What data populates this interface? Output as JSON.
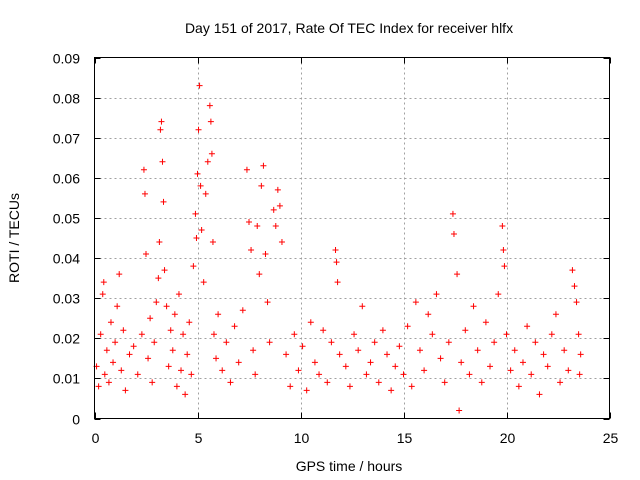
{
  "chart_data": {
    "type": "scatter",
    "title": "Day 151 of 2017, Rate Of TEC Index for receiver hlfx",
    "xlabel": "GPS time / hours",
    "ylabel": "ROTI / TECUs",
    "xlim": [
      0,
      25
    ],
    "ylim": [
      0,
      0.09
    ],
    "x_ticks": [
      0,
      5,
      10,
      15,
      20,
      25
    ],
    "x_tick_labels": [
      "0",
      "5",
      "10",
      "15",
      "20",
      "25"
    ],
    "y_ticks": [
      0,
      0.01,
      0.02,
      0.03,
      0.04,
      0.05,
      0.06,
      0.07,
      0.08,
      0.09
    ],
    "y_tick_labels": [
      "0",
      "0.01",
      "0.02",
      "0.03",
      "0.04",
      "0.05",
      "0.06",
      "0.07",
      "0.08",
      "0.09"
    ],
    "grid": true,
    "marker": "+",
    "color": "#ff0000",
    "series": [
      {
        "name": "ROTI",
        "points": [
          [
            0.1,
            0.013
          ],
          [
            0.2,
            0.008
          ],
          [
            0.3,
            0.021
          ],
          [
            0.4,
            0.031
          ],
          [
            0.45,
            0.034
          ],
          [
            0.5,
            0.011
          ],
          [
            0.6,
            0.017
          ],
          [
            0.7,
            0.009
          ],
          [
            0.8,
            0.024
          ],
          [
            0.9,
            0.014
          ],
          [
            1.0,
            0.019
          ],
          [
            1.1,
            0.028
          ],
          [
            1.2,
            0.036
          ],
          [
            1.3,
            0.012
          ],
          [
            1.4,
            0.022
          ],
          [
            1.5,
            0.007
          ],
          [
            1.7,
            0.016
          ],
          [
            1.9,
            0.018
          ],
          [
            2.1,
            0.011
          ],
          [
            2.3,
            0.021
          ],
          [
            2.4,
            0.062
          ],
          [
            2.45,
            0.056
          ],
          [
            2.5,
            0.041
          ],
          [
            2.6,
            0.015
          ],
          [
            2.7,
            0.025
          ],
          [
            2.8,
            0.009
          ],
          [
            2.9,
            0.019
          ],
          [
            3.0,
            0.029
          ],
          [
            3.1,
            0.035
          ],
          [
            3.15,
            0.044
          ],
          [
            3.2,
            0.072
          ],
          [
            3.25,
            0.074
          ],
          [
            3.3,
            0.064
          ],
          [
            3.35,
            0.054
          ],
          [
            3.4,
            0.037
          ],
          [
            3.5,
            0.028
          ],
          [
            3.6,
            0.013
          ],
          [
            3.7,
            0.022
          ],
          [
            3.8,
            0.017
          ],
          [
            3.9,
            0.026
          ],
          [
            4.0,
            0.008
          ],
          [
            4.1,
            0.031
          ],
          [
            4.2,
            0.012
          ],
          [
            4.3,
            0.021
          ],
          [
            4.4,
            0.006
          ],
          [
            4.5,
            0.016
          ],
          [
            4.6,
            0.024
          ],
          [
            4.7,
            0.011
          ],
          [
            4.8,
            0.038
          ],
          [
            4.9,
            0.051
          ],
          [
            4.95,
            0.045
          ],
          [
            5.0,
            0.061
          ],
          [
            5.05,
            0.072
          ],
          [
            5.1,
            0.083
          ],
          [
            5.15,
            0.058
          ],
          [
            5.2,
            0.047
          ],
          [
            5.3,
            0.034
          ],
          [
            5.4,
            0.056
          ],
          [
            5.5,
            0.064
          ],
          [
            5.6,
            0.078
          ],
          [
            5.65,
            0.074
          ],
          [
            5.7,
            0.066
          ],
          [
            5.75,
            0.044
          ],
          [
            5.8,
            0.021
          ],
          [
            5.9,
            0.015
          ],
          [
            6.0,
            0.026
          ],
          [
            6.2,
            0.012
          ],
          [
            6.4,
            0.019
          ],
          [
            6.6,
            0.009
          ],
          [
            6.8,
            0.023
          ],
          [
            7.0,
            0.014
          ],
          [
            7.2,
            0.027
          ],
          [
            7.4,
            0.062
          ],
          [
            7.5,
            0.049
          ],
          [
            7.6,
            0.042
          ],
          [
            7.7,
            0.017
          ],
          [
            7.8,
            0.011
          ],
          [
            7.9,
            0.048
          ],
          [
            8.0,
            0.036
          ],
          [
            8.1,
            0.058
          ],
          [
            8.2,
            0.063
          ],
          [
            8.3,
            0.041
          ],
          [
            8.4,
            0.029
          ],
          [
            8.5,
            0.019
          ],
          [
            8.7,
            0.052
          ],
          [
            8.8,
            0.048
          ],
          [
            8.9,
            0.057
          ],
          [
            9.0,
            0.053
          ],
          [
            9.1,
            0.044
          ],
          [
            9.3,
            0.016
          ],
          [
            9.5,
            0.008
          ],
          [
            9.7,
            0.021
          ],
          [
            9.9,
            0.012
          ],
          [
            10.1,
            0.018
          ],
          [
            10.3,
            0.007
          ],
          [
            10.5,
            0.024
          ],
          [
            10.7,
            0.014
          ],
          [
            10.9,
            0.011
          ],
          [
            11.1,
            0.022
          ],
          [
            11.3,
            0.009
          ],
          [
            11.5,
            0.019
          ],
          [
            11.7,
            0.042
          ],
          [
            11.75,
            0.039
          ],
          [
            11.8,
            0.034
          ],
          [
            11.9,
            0.016
          ],
          [
            12.2,
            0.013
          ],
          [
            12.4,
            0.008
          ],
          [
            12.6,
            0.021
          ],
          [
            12.8,
            0.017
          ],
          [
            13.0,
            0.028
          ],
          [
            13.2,
            0.011
          ],
          [
            13.4,
            0.014
          ],
          [
            13.6,
            0.019
          ],
          [
            13.8,
            0.009
          ],
          [
            14.0,
            0.022
          ],
          [
            14.2,
            0.016
          ],
          [
            14.4,
            0.007
          ],
          [
            14.6,
            0.013
          ],
          [
            14.8,
            0.018
          ],
          [
            15.0,
            0.011
          ],
          [
            15.2,
            0.023
          ],
          [
            15.4,
            0.008
          ],
          [
            15.6,
            0.029
          ],
          [
            15.8,
            0.017
          ],
          [
            16.0,
            0.012
          ],
          [
            16.2,
            0.026
          ],
          [
            16.4,
            0.021
          ],
          [
            16.6,
            0.031
          ],
          [
            16.8,
            0.015
          ],
          [
            17.0,
            0.009
          ],
          [
            17.2,
            0.019
          ],
          [
            17.4,
            0.051
          ],
          [
            17.45,
            0.046
          ],
          [
            17.6,
            0.036
          ],
          [
            17.7,
            0.002
          ],
          [
            17.8,
            0.014
          ],
          [
            18.0,
            0.022
          ],
          [
            18.2,
            0.011
          ],
          [
            18.4,
            0.028
          ],
          [
            18.6,
            0.017
          ],
          [
            18.8,
            0.009
          ],
          [
            19.0,
            0.024
          ],
          [
            19.2,
            0.013
          ],
          [
            19.4,
            0.019
          ],
          [
            19.6,
            0.031
          ],
          [
            19.8,
            0.048
          ],
          [
            19.85,
            0.042
          ],
          [
            19.9,
            0.038
          ],
          [
            20.0,
            0.021
          ],
          [
            20.2,
            0.012
          ],
          [
            20.4,
            0.017
          ],
          [
            20.6,
            0.008
          ],
          [
            20.8,
            0.014
          ],
          [
            21.0,
            0.023
          ],
          [
            21.2,
            0.011
          ],
          [
            21.4,
            0.019
          ],
          [
            21.6,
            0.006
          ],
          [
            21.8,
            0.016
          ],
          [
            22.0,
            0.013
          ],
          [
            22.2,
            0.021
          ],
          [
            22.4,
            0.026
          ],
          [
            22.6,
            0.009
          ],
          [
            22.8,
            0.017
          ],
          [
            23.0,
            0.012
          ],
          [
            23.2,
            0.037
          ],
          [
            23.3,
            0.033
          ],
          [
            23.4,
            0.029
          ],
          [
            23.5,
            0.021
          ],
          [
            23.55,
            0.011
          ],
          [
            23.6,
            0.016
          ]
        ]
      }
    ]
  }
}
